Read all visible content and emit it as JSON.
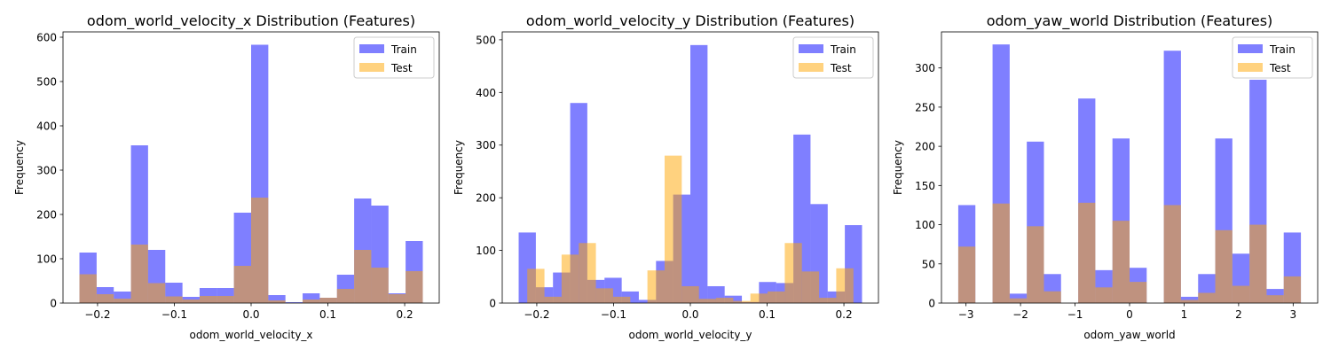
{
  "chart_data": [
    {
      "type": "histogram",
      "title": "odom_world_velocity_x Distribution (Features)",
      "xlabel": "odom_world_velocity_x",
      "ylabel": "Frequency",
      "xlim": [
        -0.245,
        0.245
      ],
      "ylim": [
        0,
        612
      ],
      "x_ticks": [
        -0.2,
        -0.1,
        0.0,
        0.1,
        0.2
      ],
      "x_tick_labels": [
        "−0.2",
        "−0.1",
        "0.0",
        "0.1",
        "0.2"
      ],
      "y_ticks": [
        0,
        100,
        200,
        300,
        400,
        500,
        600
      ],
      "legend_position": "top-right",
      "series": [
        {
          "name": "Train",
          "color": "#0000ff",
          "opacity": 0.5,
          "bin_edges": [
            -0.2236,
            -0.2012,
            -0.1789,
            -0.1565,
            -0.1342,
            -0.1118,
            -0.0894,
            -0.0671,
            -0.0447,
            -0.0224,
            0.0,
            0.0224,
            0.0447,
            0.0671,
            0.0894,
            0.1118,
            0.1342,
            0.1565,
            0.1789,
            0.2012,
            0.2236
          ],
          "counts": [
            114,
            36,
            26,
            356,
            120,
            46,
            14,
            34,
            34,
            204,
            583,
            18,
            2,
            22,
            12,
            64,
            236,
            220,
            22,
            140
          ]
        },
        {
          "name": "Test",
          "color": "#ffa500",
          "opacity": 0.5,
          "bin_edges": [
            -0.2236,
            -0.2012,
            -0.1789,
            -0.1565,
            -0.1342,
            -0.1118,
            -0.0894,
            -0.0671,
            -0.0447,
            -0.0224,
            0.0,
            0.0224,
            0.0447,
            0.0671,
            0.0894,
            0.1118,
            0.1342,
            0.1565,
            0.1789,
            0.2012,
            0.2236
          ],
          "counts": [
            65,
            20,
            10,
            132,
            45,
            15,
            8,
            16,
            16,
            84,
            238,
            6,
            0,
            8,
            12,
            32,
            120,
            80,
            20,
            72
          ]
        }
      ]
    },
    {
      "type": "histogram",
      "title": "odom_world_velocity_y Distribution (Features)",
      "xlabel": "odom_world_velocity_y",
      "ylabel": "Frequency",
      "xlim": [
        -0.245,
        0.245
      ],
      "ylim": [
        0,
        515
      ],
      "x_ticks": [
        -0.2,
        -0.1,
        0.0,
        0.1,
        0.2
      ],
      "x_tick_labels": [
        "−0.2",
        "−0.1",
        "0.0",
        "0.1",
        "0.2"
      ],
      "y_ticks": [
        0,
        100,
        200,
        300,
        400,
        500
      ],
      "legend_position": "top-right",
      "series": [
        {
          "name": "Train",
          "color": "#0000ff",
          "opacity": 0.5,
          "bin_edges": [
            -0.2236,
            -0.2012,
            -0.1789,
            -0.1565,
            -0.1342,
            -0.1118,
            -0.0894,
            -0.0671,
            -0.0447,
            -0.0224,
            0.0,
            0.0224,
            0.0447,
            0.0671,
            0.0894,
            0.1118,
            0.1342,
            0.1565,
            0.1789,
            0.2012,
            0.2236
          ],
          "counts": [
            134,
            30,
            58,
            380,
            44,
            48,
            22,
            6,
            80,
            206,
            490,
            32,
            14,
            2,
            40,
            38,
            320,
            188,
            22,
            148
          ]
        },
        {
          "name": "Test",
          "color": "#ffa500",
          "opacity": 0.5,
          "bin_edges": [
            -0.2124,
            -0.19,
            -0.1677,
            -0.1453,
            -0.123,
            -0.1006,
            -0.0782,
            -0.0559,
            -0.0335,
            -0.0112,
            0.0112,
            0.0335,
            0.0559,
            0.0782,
            0.1006,
            0.123,
            0.1453,
            0.1677,
            0.19,
            0.2124
          ],
          "counts": [
            65,
            12,
            92,
            114,
            28,
            12,
            0,
            62,
            280,
            32,
            8,
            10,
            4,
            18,
            22,
            114,
            60,
            10,
            66
          ]
        }
      ]
    },
    {
      "type": "histogram",
      "title": "odom_yaw_world Distribution (Features)",
      "xlabel": "odom_yaw_world",
      "ylabel": "Frequency",
      "xlim": [
        -3.45,
        3.45
      ],
      "ylim": [
        0,
        346
      ],
      "x_ticks": [
        -3,
        -2,
        -1,
        0,
        1,
        2,
        3
      ],
      "x_tick_labels": [
        "−3",
        "−2",
        "−1",
        "0",
        "1",
        "2",
        "3"
      ],
      "y_ticks": [
        0,
        50,
        100,
        150,
        200,
        250,
        300
      ],
      "legend_position": "top-right",
      "series": [
        {
          "name": "Train",
          "color": "#0000ff",
          "opacity": 0.5,
          "bin_edges": [
            -3.142,
            -2.828,
            -2.513,
            -2.199,
            -1.885,
            -1.571,
            -1.257,
            -0.942,
            -0.628,
            -0.314,
            0.0,
            0.314,
            0.628,
            0.942,
            1.257,
            1.571,
            1.885,
            2.199,
            2.513,
            2.827,
            3.142
          ],
          "counts": [
            125,
            0,
            330,
            12,
            206,
            37,
            0,
            261,
            42,
            210,
            45,
            0,
            322,
            8,
            37,
            210,
            63,
            285,
            18,
            90
          ]
        },
        {
          "name": "Test",
          "color": "#ffa500",
          "opacity": 0.5,
          "bin_edges": [
            -3.142,
            -2.828,
            -2.513,
            -2.199,
            -1.885,
            -1.571,
            -1.257,
            -0.942,
            -0.628,
            -0.314,
            0.0,
            0.314,
            0.628,
            0.942,
            1.257,
            1.571,
            1.885,
            2.199,
            2.513,
            2.827,
            3.142
          ],
          "counts": [
            72,
            0,
            127,
            6,
            98,
            15,
            0,
            128,
            20,
            105,
            27,
            0,
            125,
            4,
            13,
            93,
            22,
            100,
            10,
            34
          ]
        }
      ]
    }
  ]
}
